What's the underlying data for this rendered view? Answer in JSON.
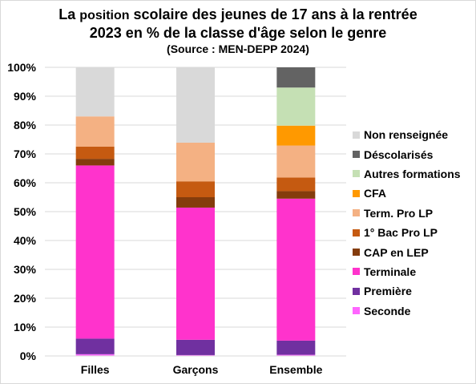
{
  "title": {
    "line1_prefix": "La ",
    "line1_small": "position",
    "line1_rest": " scolaire des jeunes de 17 ans à la rentrée",
    "line2": "2023 en % de la classe d'âge selon le genre",
    "line3": "(Source : MEN-DEPP 2024)"
  },
  "chart_data": {
    "type": "bar",
    "stacked": true,
    "categories": [
      "Filles",
      "Garçons",
      "Ensemble"
    ],
    "series": [
      {
        "name": "Seconde",
        "color": "#ff66ff",
        "values": [
          0.6,
          0.3,
          0.4
        ]
      },
      {
        "name": "Première",
        "color": "#7030a0",
        "values": [
          5.4,
          5.3,
          4.9
        ]
      },
      {
        "name": "Terminale",
        "color": "#ff33cc",
        "values": [
          60.0,
          45.8,
          49.2
        ]
      },
      {
        "name": "CAP en LEP",
        "color": "#843c0c",
        "values": [
          2.3,
          3.6,
          2.6
        ]
      },
      {
        "name": "1° Bac Pro LP",
        "color": "#c55a11",
        "values": [
          4.2,
          5.5,
          4.7
        ]
      },
      {
        "name": "Term. Pro LP",
        "color": "#f4b183",
        "values": [
          10.5,
          13.4,
          11.1
        ]
      },
      {
        "name": "CFA",
        "color": "#ff9900",
        "values": [
          0,
          0,
          6.9
        ]
      },
      {
        "name": "Autres formations",
        "color": "#c5e0b4",
        "values": [
          0,
          0,
          13.2
        ]
      },
      {
        "name": "Déscolarisés",
        "color": "#636363",
        "values": [
          0,
          0,
          7.0
        ]
      },
      {
        "name": "Non renseignée",
        "color": "#d9d9d9",
        "values": [
          17.0,
          26.1,
          0
        ]
      }
    ],
    "ylim": [
      0,
      100
    ],
    "yticks": [
      "0%",
      "10%",
      "20%",
      "30%",
      "40%",
      "50%",
      "60%",
      "70%",
      "80%",
      "90%",
      "100%"
    ],
    "grid": true,
    "legend_position": "right"
  }
}
